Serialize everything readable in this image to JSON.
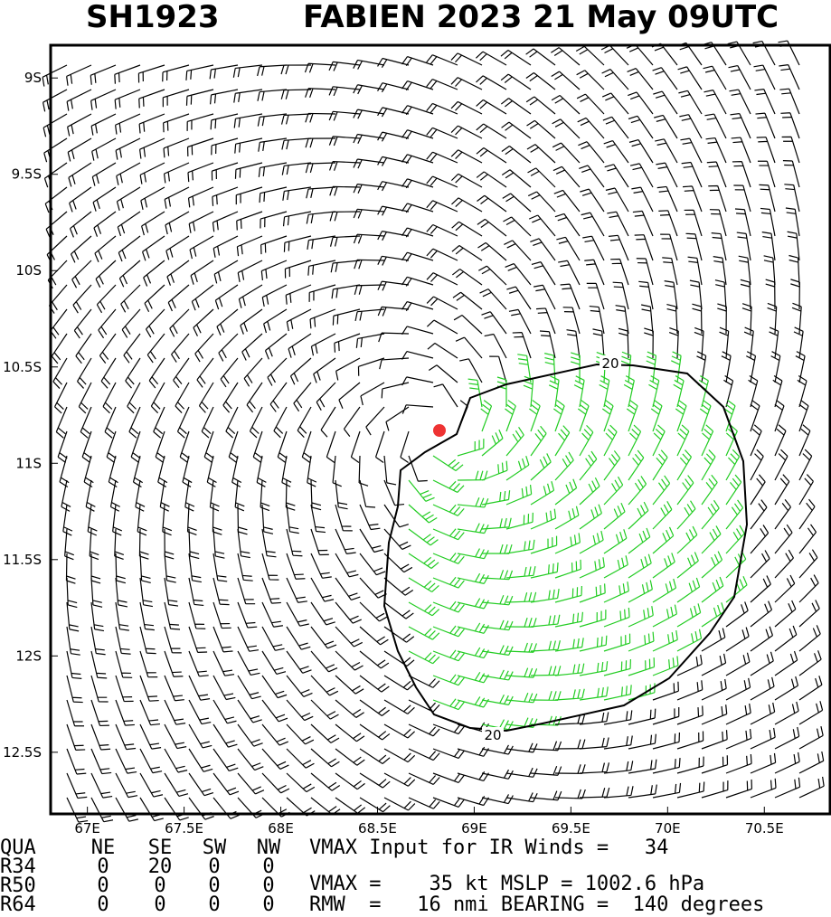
{
  "header": {
    "id": "SH1923",
    "title": "FABIEN 2023 21 May 09UTC"
  },
  "map": {
    "xlim": [
      66.81,
      70.84
    ],
    "ylim": [
      -12.82,
      -8.83
    ],
    "xticks": [
      {
        "value": 67,
        "label": "67E"
      },
      {
        "value": 67.5,
        "label": "67.5E"
      },
      {
        "value": 68,
        "label": "68E"
      },
      {
        "value": 68.5,
        "label": "68.5E"
      },
      {
        "value": 69,
        "label": "69E"
      },
      {
        "value": 69.5,
        "label": "69.5E"
      },
      {
        "value": 70,
        "label": "70E"
      },
      {
        "value": 70.5,
        "label": "70.5E"
      }
    ],
    "yticks": [
      {
        "value": -9,
        "label": "9S"
      },
      {
        "value": -9.5,
        "label": "9.5S"
      },
      {
        "value": -10,
        "label": "10S"
      },
      {
        "value": -10.5,
        "label": "10.5S"
      },
      {
        "value": -11,
        "label": "11S"
      },
      {
        "value": -11.5,
        "label": "11.5S"
      },
      {
        "value": -12,
        "label": "12S"
      },
      {
        "value": -12.5,
        "label": "12.5S"
      }
    ],
    "contour_labels": [
      "20",
      "20"
    ]
  },
  "table": {
    "header": [
      "QUA",
      "NE",
      "SE",
      "SW",
      "NW"
    ],
    "rows": [
      [
        "R34",
        "0",
        "20",
        "0",
        "0"
      ],
      [
        "R50",
        "0",
        "0",
        "0",
        "0"
      ],
      [
        "R64",
        "0",
        "0",
        "0",
        "0"
      ]
    ]
  },
  "info": [
    "VMAX Input for IR Winds =   34",
    "VMAX =    35 kt MSLP = 1002.6 hPa",
    "RMW  =   16 nmi BEARING =  140 degrees"
  ]
}
